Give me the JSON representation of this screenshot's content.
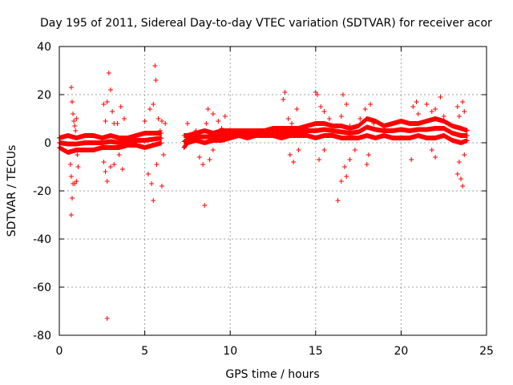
{
  "chart_data": {
    "type": "scatter",
    "title": "Day 195 of 2011, Sidereal Day-to-day VTEC variation (SDTVAR) for receiver acor",
    "xlabel": "GPS time / hours",
    "ylabel": "SDTVAR / TECUs",
    "xlim": [
      0,
      25
    ],
    "ylim": [
      -80,
      40
    ],
    "xticks": [
      0,
      5,
      10,
      15,
      20,
      25
    ],
    "yticks": [
      -80,
      -60,
      -40,
      -20,
      0,
      20,
      40
    ],
    "grid": true,
    "marker": "+",
    "color": "#ff0000",
    "series": [
      {
        "name": "SDTVAR",
        "points": [
          [
            0.7,
            23
          ],
          [
            0.75,
            17
          ],
          [
            0.8,
            12
          ],
          [
            0.85,
            9
          ],
          [
            0.9,
            7
          ],
          [
            0.95,
            5
          ],
          [
            1.0,
            10
          ],
          [
            1.05,
            -5
          ],
          [
            1.1,
            -10
          ],
          [
            0.65,
            -9
          ],
          [
            0.7,
            -14
          ],
          [
            0.8,
            -17
          ],
          [
            0.75,
            -23
          ],
          [
            0.7,
            -30
          ],
          [
            0.9,
            -17
          ],
          [
            1.0,
            -16
          ],
          [
            0.6,
            -4
          ],
          [
            1.2,
            -3
          ],
          [
            2.6,
            16
          ],
          [
            2.8,
            17
          ],
          [
            2.9,
            29
          ],
          [
            3.0,
            22
          ],
          [
            3.1,
            13
          ],
          [
            3.2,
            8
          ],
          [
            2.7,
            9
          ],
          [
            2.6,
            -8
          ],
          [
            2.7,
            -12
          ],
          [
            2.8,
            -16
          ],
          [
            3.0,
            -10
          ],
          [
            3.2,
            -9
          ],
          [
            3.4,
            8
          ],
          [
            3.6,
            15
          ],
          [
            3.8,
            10
          ],
          [
            3.5,
            -5
          ],
          [
            3.7,
            -11
          ],
          [
            2.8,
            -73
          ],
          [
            5.0,
            9
          ],
          [
            5.3,
            14
          ],
          [
            5.5,
            16
          ],
          [
            5.6,
            32
          ],
          [
            5.65,
            26
          ],
          [
            5.8,
            10
          ],
          [
            6.0,
            9
          ],
          [
            5.2,
            -13
          ],
          [
            5.4,
            -17
          ],
          [
            5.5,
            -24
          ],
          [
            5.7,
            -9
          ],
          [
            6.0,
            -18
          ],
          [
            6.1,
            -5
          ],
          [
            5.9,
            5
          ],
          [
            6.2,
            8
          ],
          [
            7.5,
            8
          ],
          [
            7.8,
            3
          ],
          [
            8.0,
            5
          ],
          [
            8.2,
            -6
          ],
          [
            8.4,
            -9
          ],
          [
            8.5,
            -26
          ],
          [
            8.6,
            8
          ],
          [
            8.7,
            14
          ],
          [
            9.0,
            12
          ],
          [
            9.3,
            9
          ],
          [
            9.5,
            6
          ],
          [
            9.7,
            11
          ],
          [
            9.0,
            -3
          ],
          [
            8.8,
            -7
          ],
          [
            8.9,
            2
          ],
          [
            13.1,
            18
          ],
          [
            13.2,
            21
          ],
          [
            13.4,
            10
          ],
          [
            13.6,
            8
          ],
          [
            13.9,
            14
          ],
          [
            13.5,
            -5
          ],
          [
            13.7,
            -8
          ],
          [
            14.0,
            -3
          ],
          [
            15.0,
            21
          ],
          [
            15.1,
            20
          ],
          [
            15.3,
            15
          ],
          [
            15.5,
            13
          ],
          [
            15.8,
            10
          ],
          [
            15.2,
            -7
          ],
          [
            15.5,
            -3
          ],
          [
            16.2,
            7
          ],
          [
            16.5,
            11
          ],
          [
            16.6,
            20
          ],
          [
            16.8,
            16
          ],
          [
            17.0,
            7
          ],
          [
            16.3,
            -24
          ],
          [
            16.5,
            -16
          ],
          [
            16.7,
            -10
          ],
          [
            16.8,
            -14
          ],
          [
            17.0,
            -7
          ],
          [
            17.3,
            -3
          ],
          [
            17.6,
            10
          ],
          [
            17.9,
            14
          ],
          [
            18.2,
            16
          ],
          [
            18.4,
            8
          ],
          [
            18.0,
            -9
          ],
          [
            18.1,
            -5
          ],
          [
            20.7,
            15
          ],
          [
            20.9,
            17
          ],
          [
            21.0,
            12
          ],
          [
            21.5,
            16
          ],
          [
            21.8,
            13
          ],
          [
            22.0,
            14
          ],
          [
            22.3,
            19
          ],
          [
            22.5,
            11
          ],
          [
            22.0,
            -6
          ],
          [
            21.8,
            -3
          ],
          [
            20.6,
            -7
          ],
          [
            23.3,
            15
          ],
          [
            23.4,
            11
          ],
          [
            23.6,
            17
          ],
          [
            23.7,
            13
          ],
          [
            23.3,
            -13
          ],
          [
            23.5,
            -15
          ],
          [
            23.6,
            -18
          ],
          [
            23.4,
            -8
          ],
          [
            23.7,
            -5
          ]
        ],
        "band": [
          [
            0.0,
            -2,
            2
          ],
          [
            0.5,
            -4,
            3
          ],
          [
            1.0,
            -3,
            2
          ],
          [
            1.5,
            -3,
            3
          ],
          [
            2.0,
            -3,
            3
          ],
          [
            2.5,
            -2,
            2
          ],
          [
            3.0,
            -2,
            3
          ],
          [
            3.5,
            -2,
            2
          ],
          [
            4.0,
            -1,
            2
          ],
          [
            4.5,
            -1,
            3
          ],
          [
            5.0,
            -2,
            4
          ],
          [
            5.5,
            -1,
            4
          ],
          [
            6.0,
            0,
            4
          ],
          [
            7.3,
            -2,
            3
          ],
          [
            7.5,
            0,
            3
          ],
          [
            8.0,
            1,
            4
          ],
          [
            8.5,
            0,
            5
          ],
          [
            9.0,
            1,
            4
          ],
          [
            9.5,
            1,
            5
          ],
          [
            10.0,
            2,
            5
          ],
          [
            10.5,
            3,
            5
          ],
          [
            11.0,
            2,
            5
          ],
          [
            11.5,
            3,
            5
          ],
          [
            12.0,
            3,
            5
          ],
          [
            12.5,
            3,
            6
          ],
          [
            13.0,
            2,
            6
          ],
          [
            13.5,
            3,
            6
          ],
          [
            14.0,
            3,
            6
          ],
          [
            14.5,
            3,
            7
          ],
          [
            15.0,
            2,
            8
          ],
          [
            15.5,
            3,
            8
          ],
          [
            16.0,
            3,
            7
          ],
          [
            16.5,
            2,
            7
          ],
          [
            17.0,
            2,
            6
          ],
          [
            17.5,
            2,
            7
          ],
          [
            18.0,
            3,
            10
          ],
          [
            18.5,
            2,
            9
          ],
          [
            19.0,
            3,
            7
          ],
          [
            19.5,
            2,
            8
          ],
          [
            20.0,
            2,
            9
          ],
          [
            20.5,
            2,
            8
          ],
          [
            21.0,
            3,
            8
          ],
          [
            21.5,
            2,
            9
          ],
          [
            22.0,
            2,
            10
          ],
          [
            22.5,
            3,
            9
          ],
          [
            23.0,
            1,
            7
          ],
          [
            23.5,
            0,
            6
          ],
          [
            23.9,
            1,
            5
          ]
        ]
      }
    ]
  }
}
